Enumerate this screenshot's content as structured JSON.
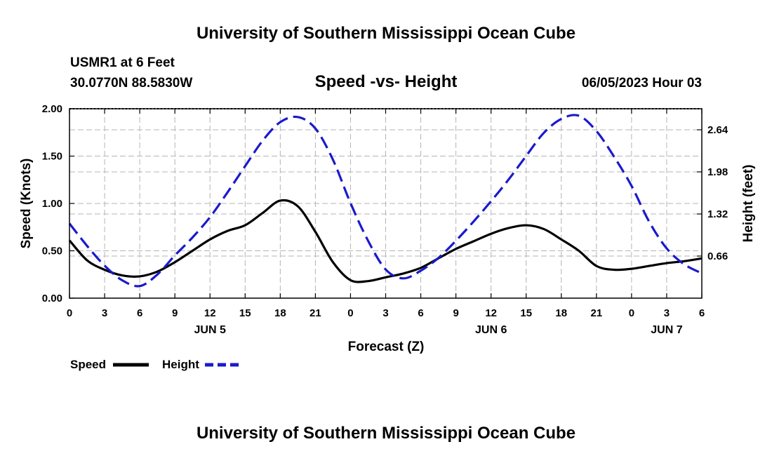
{
  "page": {
    "header_title": "University of Southern Mississippi Ocean Cube",
    "footer_title": "University of Southern Mississippi Ocean Cube",
    "station": "USMR1 at 6 Feet",
    "coordinates": "30.0770N  88.5830W",
    "datetime": "06/05/2023 Hour 03"
  },
  "legend": {
    "speed_label": "Speed",
    "height_label": "Height"
  },
  "colors": {
    "speed_line": "#000000",
    "height_line": "#1a1acc",
    "grid": "#b4b4b4"
  },
  "chart_data": {
    "type": "line",
    "title": "Speed -vs- Height",
    "xlabel": "Forecast (Z)",
    "ylabel": "Speed (Knots)",
    "y2label": "Height (feet)",
    "xlim": [
      0,
      54
    ],
    "ylim": [
      0,
      2.0
    ],
    "y2lim": [
      0,
      2.97
    ],
    "x_ticks": [
      0,
      3,
      6,
      9,
      12,
      15,
      18,
      21,
      24,
      27,
      30,
      33,
      36,
      39,
      42,
      45,
      48,
      51,
      54
    ],
    "x_tick_labels": [
      "0",
      "3",
      "6",
      "9",
      "12",
      "15",
      "18",
      "21",
      "0",
      "3",
      "6",
      "9",
      "12",
      "15",
      "18",
      "21",
      "0",
      "3",
      "6"
    ],
    "day_labels": [
      {
        "x": 12,
        "label": "JUN 5"
      },
      {
        "x": 36,
        "label": "JUN 6"
      },
      {
        "x": 51,
        "label": "JUN 7"
      }
    ],
    "y_ticks": [
      0,
      0.5,
      1.0,
      1.5,
      2.0
    ],
    "y_tick_labels": [
      "0.00",
      "0.50",
      "1.00",
      "1.50",
      "2.00"
    ],
    "y2_ticks": [
      0.66,
      1.32,
      1.98,
      2.64
    ],
    "y2_tick_labels": [
      "0.66",
      "1.32",
      "1.98",
      "2.64"
    ],
    "series": [
      {
        "name": "Speed",
        "axis": "left",
        "dash": false,
        "x": [
          0,
          1.5,
          3,
          4.5,
          6,
          7.5,
          9,
          10.5,
          12,
          13.5,
          15,
          16.5,
          18,
          19.5,
          21,
          22.5,
          24,
          25.5,
          27,
          28.5,
          30,
          31.5,
          33,
          34.5,
          36,
          37.5,
          39,
          40.5,
          42,
          43.5,
          45,
          46.5,
          48,
          49.5,
          51,
          52.5,
          54
        ],
        "values": [
          0.61,
          0.4,
          0.3,
          0.24,
          0.23,
          0.28,
          0.38,
          0.5,
          0.62,
          0.71,
          0.77,
          0.9,
          1.03,
          0.97,
          0.7,
          0.38,
          0.19,
          0.18,
          0.22,
          0.26,
          0.32,
          0.42,
          0.52,
          0.6,
          0.68,
          0.74,
          0.77,
          0.73,
          0.62,
          0.5,
          0.34,
          0.3,
          0.31,
          0.34,
          0.37,
          0.39,
          0.42
        ]
      },
      {
        "name": "Height",
        "axis": "right",
        "dash": true,
        "x": [
          0,
          1.5,
          3,
          4.5,
          6,
          7.5,
          9,
          10.5,
          12,
          13.5,
          15,
          16.5,
          18,
          19.5,
          21,
          22.5,
          24,
          25.5,
          27,
          28.5,
          30,
          31.5,
          33,
          34.5,
          36,
          37.5,
          39,
          40.5,
          42,
          43.5,
          45,
          46.5,
          48,
          49.5,
          51,
          52.5,
          54
        ],
        "values": [
          1.17,
          0.82,
          0.51,
          0.28,
          0.19,
          0.37,
          0.67,
          0.95,
          1.27,
          1.66,
          2.07,
          2.47,
          2.76,
          2.84,
          2.66,
          2.17,
          1.49,
          0.9,
          0.45,
          0.31,
          0.43,
          0.63,
          0.9,
          1.2,
          1.52,
          1.86,
          2.23,
          2.59,
          2.81,
          2.86,
          2.62,
          2.22,
          1.76,
          1.2,
          0.78,
          0.53,
          0.39
        ]
      }
    ]
  }
}
